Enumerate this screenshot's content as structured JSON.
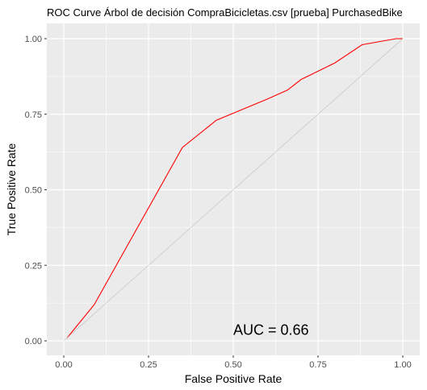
{
  "chart_data": {
    "type": "line",
    "title": "ROC Curve Árbol de decisión CompraBicicletas.csv [prueba] PurchasedBike",
    "xlabel": "False Positive Rate",
    "ylabel": "True Positive Rate",
    "xlim": [
      0,
      1
    ],
    "ylim": [
      0,
      1
    ],
    "xticks": [
      0,
      0.25,
      0.5,
      0.75,
      1
    ],
    "yticks": [
      0,
      0.25,
      0.5,
      0.75,
      1
    ],
    "xtick_labels": [
      "0.00",
      "0.25",
      "0.50",
      "0.75",
      "1.00"
    ],
    "ytick_labels": [
      "0.00",
      "0.25",
      "0.50",
      "0.75",
      "1.00"
    ],
    "grid": true,
    "series": [
      {
        "color": "#ff0000",
        "x": [
          0.01,
          0.09,
          0.35,
          0.45,
          0.6,
          0.66,
          0.7,
          0.8,
          0.88,
          0.98,
          1.0
        ],
        "y": [
          0.01,
          0.12,
          0.64,
          0.73,
          0.8,
          0.83,
          0.865,
          0.92,
          0.98,
          1.0,
          1.0
        ]
      },
      {
        "color": "#bfbfbf",
        "x": [
          0,
          1
        ],
        "y": [
          0,
          1
        ]
      }
    ],
    "annotations": [
      {
        "text": "AUC = 0.66",
        "x": 0.5,
        "y": 0.02
      }
    ],
    "colors": {
      "panel_background": "#ebebeb",
      "grid": "#ffffff"
    }
  }
}
